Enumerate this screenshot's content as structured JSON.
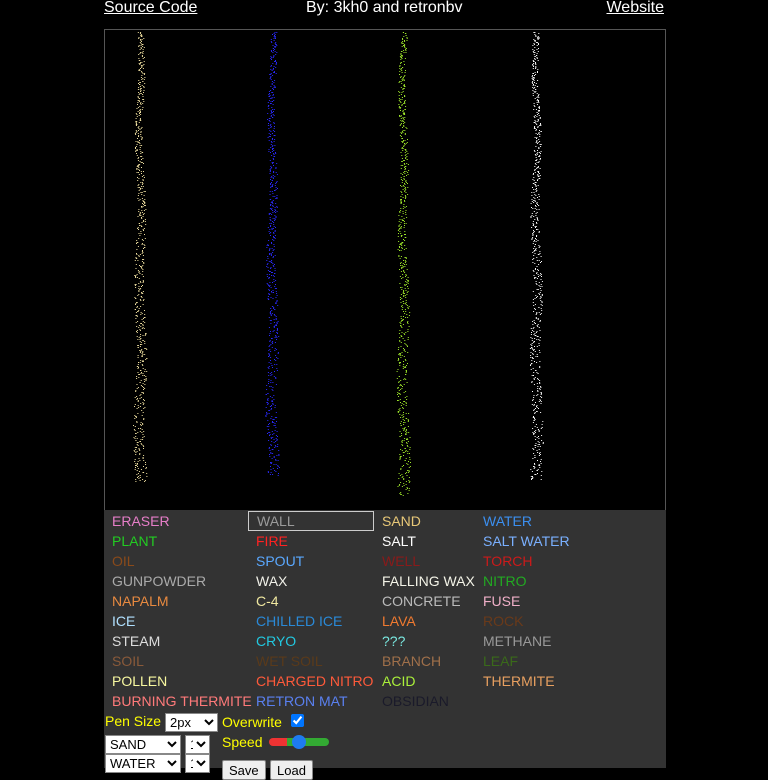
{
  "header": {
    "source_code": "Source Code",
    "credits": "By: 3kh0 and retronbv",
    "website": "Website"
  },
  "canvas": {
    "streams": [
      {
        "color": "#f0e0a0"
      },
      {
        "color": "#2a2aff"
      },
      {
        "color": "#9fe82a"
      },
      {
        "color": "#ffffff"
      }
    ]
  },
  "elements": [
    {
      "label": "ERASER",
      "color": "#e67ec8",
      "col": 0,
      "row": 0
    },
    {
      "label": "WALL",
      "color": "#9a9a9a",
      "col": 1,
      "row": 0,
      "selected": true
    },
    {
      "label": "SAND",
      "color": "#e8c878",
      "col": 2,
      "row": 0
    },
    {
      "label": "WATER",
      "color": "#3b8ff0",
      "col": 3,
      "row": 0
    },
    {
      "label": "PLANT",
      "color": "#22cc22",
      "col": 0,
      "row": 1
    },
    {
      "label": "FIRE",
      "color": "#ff2222",
      "col": 1,
      "row": 1
    },
    {
      "label": "SALT",
      "color": "#ffffff",
      "col": 2,
      "row": 1
    },
    {
      "label": "SALT WATER",
      "color": "#7ab0ff",
      "col": 3,
      "row": 1
    },
    {
      "label": "OIL",
      "color": "#8a4a1a",
      "col": 0,
      "row": 2
    },
    {
      "label": "SPOUT",
      "color": "#5aa8ff",
      "col": 1,
      "row": 2
    },
    {
      "label": "WELL",
      "color": "#8a1a1a",
      "col": 2,
      "row": 2
    },
    {
      "label": "TORCH",
      "color": "#cc1a1a",
      "col": 3,
      "row": 2
    },
    {
      "label": "GUNPOWDER",
      "color": "#aaaaaa",
      "col": 0,
      "row": 3
    },
    {
      "label": "WAX",
      "color": "#f0f0e8",
      "col": 1,
      "row": 3
    },
    {
      "label": "FALLING WAX",
      "color": "#f4f4e8",
      "col": 2,
      "row": 3
    },
    {
      "label": "NITRO",
      "color": "#22aa22",
      "col": 3,
      "row": 3
    },
    {
      "label": "NAPALM",
      "color": "#e88a40",
      "col": 0,
      "row": 4
    },
    {
      "label": "C-4",
      "color": "#f0e8a0",
      "col": 1,
      "row": 4
    },
    {
      "label": "CONCRETE",
      "color": "#bbbbbb",
      "col": 2,
      "row": 4
    },
    {
      "label": "FUSE",
      "color": "#f0b0c8",
      "col": 3,
      "row": 4
    },
    {
      "label": "ICE",
      "color": "#b0e0ff",
      "col": 0,
      "row": 5
    },
    {
      "label": "CHILLED ICE",
      "color": "#2a8ad8",
      "col": 1,
      "row": 5
    },
    {
      "label": "LAVA",
      "color": "#f07a30",
      "col": 2,
      "row": 5
    },
    {
      "label": "ROCK",
      "color": "#6a3a1a",
      "col": 3,
      "row": 5
    },
    {
      "label": "STEAM",
      "color": "#dddddd",
      "col": 0,
      "row": 6
    },
    {
      "label": "CRYO",
      "color": "#22c8e0",
      "col": 1,
      "row": 6
    },
    {
      "label": "???",
      "color": "#7ae8e0",
      "col": 2,
      "row": 6
    },
    {
      "label": "METHANE",
      "color": "#999999",
      "col": 3,
      "row": 6
    },
    {
      "label": "SOIL",
      "color": "#8a5a3a",
      "col": 0,
      "row": 7
    },
    {
      "label": "WET SOIL",
      "color": "#5a3a1a",
      "col": 1,
      "row": 7
    },
    {
      "label": "BRANCH",
      "color": "#a0704a",
      "col": 2,
      "row": 7
    },
    {
      "label": "LEAF",
      "color": "#3a6a1a",
      "col": 3,
      "row": 7
    },
    {
      "label": "POLLEN",
      "color": "#f8f8a0",
      "col": 0,
      "row": 8
    },
    {
      "label": "CHARGED NITRO",
      "color": "#ff5a3a",
      "col": 1,
      "row": 8
    },
    {
      "label": "ACID",
      "color": "#aaf03a",
      "col": 2,
      "row": 8
    },
    {
      "label": "THERMITE",
      "color": "#e8a060",
      "col": 3,
      "row": 8
    },
    {
      "label": "BURNING THERMITE",
      "color": "#ff7a7a",
      "col": 0,
      "row": 9
    },
    {
      "label": "RETRON MAT",
      "color": "#5a80f0",
      "col": 1,
      "row": 9
    },
    {
      "label": "OBSIDIAN",
      "color": "#1a1a2a",
      "col": 2,
      "row": 9
    }
  ],
  "controls": {
    "pen_size_label": "Pen Size",
    "pen_size_value": "2px",
    "overwrite_label": "Overwrite",
    "overwrite_checked": true,
    "speed_label": "Speed",
    "speed_fraction": 0.5,
    "spout1_element": "SAND",
    "spout1_rate": "1",
    "spout2_element": "WATER",
    "spout2_rate": "1",
    "save_label": "Save",
    "load_label": "Load"
  }
}
